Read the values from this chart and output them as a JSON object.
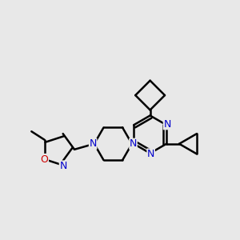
{
  "background_color": "#e8e8e8",
  "bond_color": "#000000",
  "nitrogen_color": "#0000cc",
  "oxygen_color": "#cc0000",
  "line_width": 1.8,
  "figsize": [
    3.0,
    3.0
  ],
  "dpi": 100,
  "xlim": [
    0.05,
    0.95
  ],
  "ylim": [
    0.15,
    0.95
  ]
}
